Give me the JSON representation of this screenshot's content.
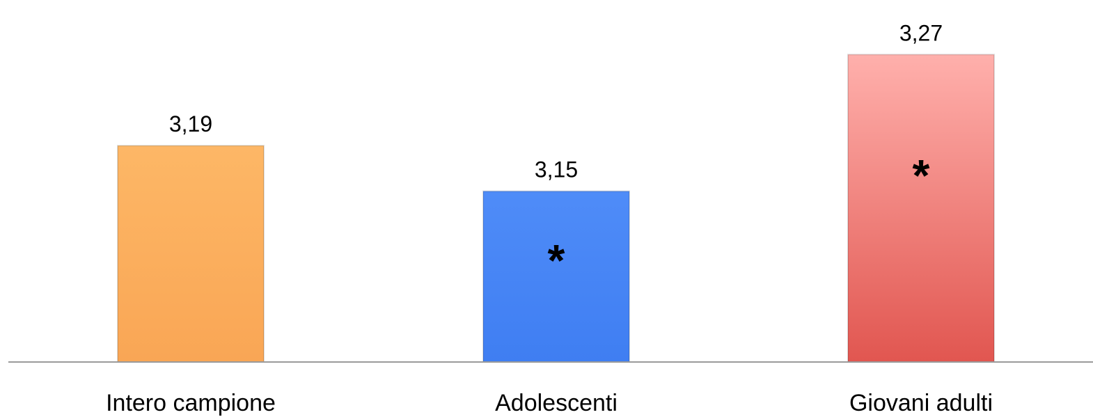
{
  "chart_data": {
    "type": "bar",
    "categories": [
      "Intero campione",
      "Adolescenti",
      "Giovani adulti"
    ],
    "values": [
      3.19,
      3.15,
      3.27
    ],
    "value_labels": [
      "3,19",
      "3,15",
      "3,27"
    ],
    "markers": [
      "",
      "*",
      "*"
    ],
    "colors": [
      "#fbae5e",
      "#4a86f5",
      "#e8605c"
    ],
    "ylim": [
      3.0,
      3.28
    ],
    "grid": false,
    "legend": "none"
  }
}
